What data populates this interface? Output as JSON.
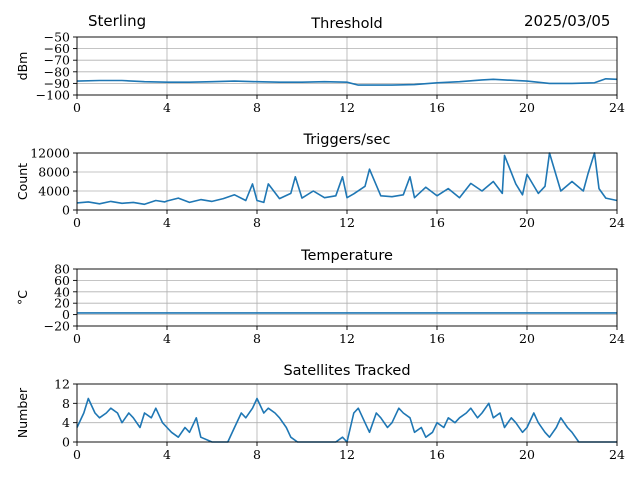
{
  "header": {
    "station": "Sterling",
    "date": "2025/03/05"
  },
  "colors": {
    "series": "#1f77b4",
    "grid": "#b0b0b0",
    "axis": "#000000"
  },
  "chart_data": [
    {
      "type": "line",
      "title": "Threshold",
      "ylabel": "dBm",
      "xlim": [
        0,
        24
      ],
      "ylim": [
        -100,
        -50
      ],
      "xticks": [
        0,
        4,
        8,
        12,
        16,
        20,
        24
      ],
      "yticks": [
        -50,
        -60,
        -70,
        -80,
        -90,
        -100
      ],
      "yticklabels": [
        "−50",
        "−60",
        "−70",
        "−80",
        "−90",
        "−100"
      ],
      "grid": true,
      "series": [
        {
          "x": [
            0,
            1,
            2,
            3,
            4,
            5,
            6,
            7,
            8,
            9,
            10,
            11,
            12,
            12.5,
            13,
            14,
            15,
            16,
            17,
            18,
            18.5,
            19,
            20,
            21,
            22,
            23,
            23.5,
            24
          ],
          "y": [
            -88,
            -87.5,
            -87.5,
            -88.5,
            -89,
            -89,
            -88.5,
            -88,
            -88.5,
            -89,
            -89,
            -88.5,
            -89,
            -91.5,
            -91.5,
            -91.5,
            -91,
            -89.5,
            -88.5,
            -87,
            -86.5,
            -87,
            -88,
            -90,
            -90,
            -89.5,
            -86,
            -86.5
          ]
        }
      ]
    },
    {
      "type": "line",
      "title": "Triggers/sec",
      "ylabel": "Count",
      "xlim": [
        0,
        24
      ],
      "ylim": [
        0,
        12000
      ],
      "xticks": [
        0,
        4,
        8,
        12,
        16,
        20,
        24
      ],
      "yticks": [
        0,
        4000,
        8000,
        12000
      ],
      "yticklabels": [
        "0",
        "4000",
        "8000",
        "12000"
      ],
      "grid": true,
      "series": [
        {
          "x": [
            0,
            0.5,
            1,
            1.5,
            2,
            2.5,
            3,
            3.5,
            3.9,
            4,
            4.5,
            5,
            5.5,
            6,
            6.5,
            7,
            7.5,
            7.8,
            8,
            8.3,
            8.5,
            9,
            9.5,
            9.7,
            10,
            10.5,
            11,
            11.5,
            11.8,
            12,
            12.3,
            12.8,
            13,
            13.5,
            14,
            14.5,
            14.8,
            15,
            15.5,
            16,
            16.5,
            17,
            17.5,
            18,
            18.5,
            18.9,
            19,
            19.5,
            19.8,
            20,
            20.5,
            20.8,
            21,
            21.5,
            22,
            22.5,
            22.7,
            23,
            23.2,
            23.5,
            24
          ],
          "y": [
            1500,
            1700,
            1300,
            1800,
            1400,
            1600,
            1200,
            2000,
            1700,
            1900,
            2500,
            1600,
            2200,
            1800,
            2400,
            3200,
            2000,
            5500,
            2000,
            1600,
            5500,
            2400,
            3500,
            7000,
            2500,
            4000,
            2600,
            3000,
            7000,
            2600,
            3400,
            5000,
            8600,
            3000,
            2800,
            3200,
            7000,
            2600,
            4800,
            3000,
            4500,
            2600,
            5600,
            4000,
            6000,
            3500,
            11500,
            5500,
            3200,
            7500,
            3500,
            5000,
            12000,
            4000,
            6000,
            4000,
            7500,
            12000,
            4500,
            2500,
            2000
          ]
        }
      ]
    },
    {
      "type": "line",
      "title": "Temperature",
      "ylabel": "°C",
      "xlim": [
        0,
        24
      ],
      "ylim": [
        -20,
        80
      ],
      "xticks": [
        0,
        4,
        8,
        12,
        16,
        20,
        24
      ],
      "yticks": [
        -20,
        0,
        20,
        40,
        60,
        80
      ],
      "yticklabels": [
        "−20",
        "0",
        "20",
        "40",
        "60",
        "80"
      ],
      "grid": true,
      "series": [
        {
          "x": [
            0,
            24
          ],
          "y": [
            3,
            3
          ]
        }
      ]
    },
    {
      "type": "line",
      "title": "Satellites Tracked",
      "ylabel": "Number",
      "xlim": [
        0,
        24
      ],
      "ylim": [
        0,
        12
      ],
      "xticks": [
        0,
        4,
        8,
        12,
        16,
        20,
        24
      ],
      "yticks": [
        0,
        4,
        8,
        12
      ],
      "yticklabels": [
        "0",
        "4",
        "8",
        "12"
      ],
      "grid": true,
      "series": [
        {
          "x": [
            0,
            0.3,
            0.5,
            0.8,
            1.0,
            1.3,
            1.5,
            1.8,
            2.0,
            2.3,
            2.5,
            2.8,
            3.0,
            3.3,
            3.5,
            3.8,
            4.0,
            4.2,
            4.5,
            4.8,
            5.0,
            5.3,
            5.5,
            6.0,
            6.5,
            6.7,
            7.0,
            7.3,
            7.5,
            7.8,
            8.0,
            8.3,
            8.5,
            8.8,
            9.0,
            9.3,
            9.5,
            9.8,
            10.0,
            10.5,
            11.0,
            11.5,
            11.8,
            12.0,
            12.3,
            12.5,
            12.8,
            13.0,
            13.3,
            13.5,
            13.8,
            14.0,
            14.3,
            14.5,
            14.8,
            15.0,
            15.3,
            15.5,
            15.8,
            16.0,
            16.3,
            16.5,
            16.8,
            17.0,
            17.3,
            17.5,
            17.8,
            18.0,
            18.3,
            18.5,
            18.8,
            19.0,
            19.3,
            19.5,
            19.8,
            20.0,
            20.3,
            20.5,
            20.8,
            21.0,
            21.3,
            21.5,
            21.8,
            22.0,
            22.3,
            22.5,
            22.8,
            23.0,
            24.0
          ],
          "y": [
            3,
            6,
            9,
            6,
            5,
            6,
            7,
            6,
            4,
            6,
            5,
            3,
            6,
            5,
            7,
            4,
            3,
            2,
            1,
            3,
            2,
            5,
            1,
            0,
            0,
            0,
            3,
            6,
            5,
            7,
            9,
            6,
            7,
            6,
            5,
            3,
            1,
            0,
            0,
            0,
            0,
            0,
            1,
            0,
            6,
            7,
            4,
            2,
            6,
            5,
            3,
            4,
            7,
            6,
            5,
            2,
            3,
            1,
            2,
            4,
            3,
            5,
            4,
            5,
            6,
            7,
            5,
            6,
            8,
            5,
            6,
            3,
            5,
            4,
            2,
            3,
            6,
            4,
            2,
            1,
            3,
            5,
            3,
            2,
            0,
            0,
            0,
            0,
            0
          ]
        }
      ]
    }
  ]
}
